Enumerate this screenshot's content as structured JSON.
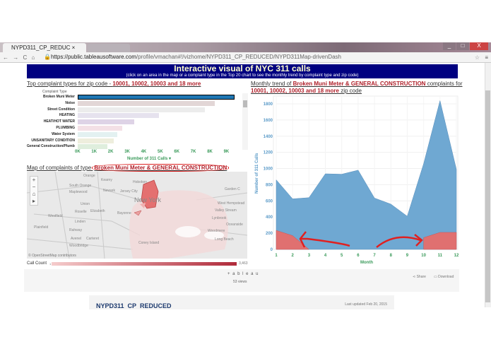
{
  "browser": {
    "tab_title": "NYPD311_CP_REDUC",
    "url_host": "https://public.tableausoftware.com",
    "url_path": "/profile/vmachan#!/vizhome/NYPD311_CP_REDUCED/NYPD311Map-drivenDash",
    "nav": "← → C ⌂"
  },
  "banner": {
    "title": "Interactive visual of NYC 311 calls",
    "subtitle": "(click on an area in the map or a complaint type in the Top 20 chart to see the monthly trend by complaint type and zip code)"
  },
  "left_title": {
    "prefix": "Top complaint types for zip code - ",
    "zips": "10001, 10002, 10003 and 18 more"
  },
  "chart_data": [
    {
      "type": "bar",
      "orientation": "horizontal",
      "column_header": "Complaint Type",
      "xlabel": "Number of 311 Calls",
      "xticks": [
        "0K",
        "1K",
        "2K",
        "3K",
        "4K",
        "5K",
        "6K",
        "7K",
        "8K",
        "9K"
      ],
      "xlim": [
        0,
        10000
      ],
      "categories": [
        "Broken Muni Meter",
        "Noise",
        "Street Condition",
        "HEATING",
        "HEAT/HOT WATER",
        "PLUMBING",
        "Water System",
        "UNSANITARY CONDITION",
        "General Construction/Plumb..."
      ],
      "values": [
        9500,
        8300,
        7700,
        4900,
        3400,
        2700,
        2400,
        2200,
        1800
      ],
      "colors": [
        "#1f77b4",
        "#e2d6d6",
        "#ececec",
        "#e6e2ee",
        "#ded3e6",
        "#f3e0e6",
        "#e3f1f1",
        "#eeeedd",
        "#dfeedd"
      ]
    },
    {
      "type": "area",
      "xlabel": "Month",
      "ylabel": "Number of 311 Calls",
      "x": [
        1,
        2,
        3,
        4,
        5,
        6,
        7,
        8,
        9,
        10,
        11,
        12
      ],
      "ylim": [
        0,
        1900
      ],
      "yticks": [
        0,
        200,
        400,
        600,
        800,
        1000,
        1200,
        1400,
        1600,
        1800
      ],
      "series": [
        {
          "values": [
            860,
            625,
            640,
            935,
            930,
            980,
            635,
            560,
            410,
            1060,
            1840,
            990
          ],
          "color": "#6fa8d2"
        },
        {
          "values": [
            235,
            170,
            0,
            null,
            null,
            null,
            null,
            null,
            null,
            145,
            210,
            210
          ],
          "color": "#e07070"
        }
      ]
    }
  ],
  "right_title": {
    "prefix": "Monthly trend of ",
    "types": "Broken Muni Meter & GENERAL CONSTRUCTION",
    "mid": " complaints for ",
    "zips": "10001, 10002, 10003 and 18 more",
    "suffix": " zip code"
  },
  "map": {
    "title_prefix": "Map of complaints of type ",
    "title_types": "Broken Muni Meter & GENERAL CONSTRUCTION",
    "attribution": "© OpenStreetMap contributors",
    "places": [
      "Orange",
      "Kearny",
      "South Orange",
      "Hoboken",
      "Maplewood",
      "Newark",
      "Jersey City",
      "New York",
      "Union",
      "Elizabeth",
      "Westfield",
      "Roselle",
      "Bayonne",
      "Linden",
      "Rahway",
      "Plainfield",
      "Avenel",
      "Carteret",
      "Woodbridge",
      "Coney Island",
      "Garden C",
      "West Hempstead",
      "Valley Stream",
      "Lynbrook",
      "Oceanside",
      "Woodmere",
      "Long Beach"
    ],
    "legend_label": "Call Count",
    "legend_min": "1",
    "legend_max": "3,463",
    "controls": [
      "+",
      "−",
      "⌂",
      "▸"
    ]
  },
  "footer": {
    "logo": "+ a b l e a u",
    "views": "53 views",
    "share": "Share",
    "download": "Download"
  },
  "card": {
    "title": "NYPD311_CP_REDUCED",
    "updated": "Last updated Feb 20, 2015"
  }
}
